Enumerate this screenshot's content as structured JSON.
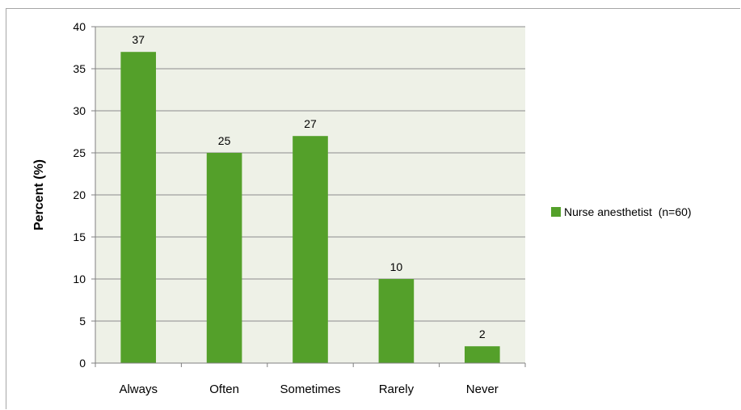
{
  "chart_data": {
    "type": "bar",
    "categories": [
      "Always",
      "Often",
      "Sometimes",
      "Rarely",
      "Never"
    ],
    "series": [
      {
        "name": "Nurse anesthetist  (n=60)",
        "values": [
          37,
          25,
          27,
          10,
          2
        ],
        "color": "#54a02a"
      }
    ],
    "ylabel": "Percent (%)",
    "xlabel": "",
    "title": "",
    "ylim": [
      0,
      40
    ],
    "yticks": [
      0,
      5,
      10,
      15,
      20,
      25,
      30,
      35,
      40
    ],
    "grid": true,
    "plot_background": "#eef1e7",
    "legend_position": "right"
  }
}
